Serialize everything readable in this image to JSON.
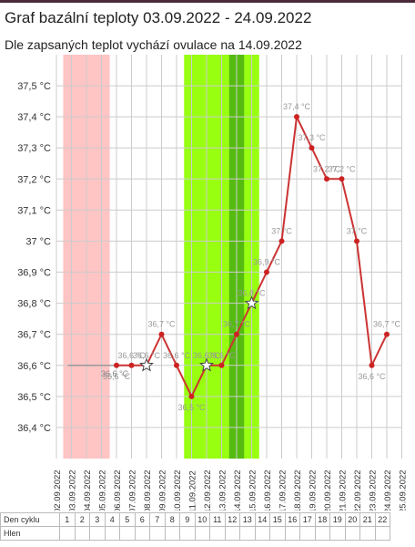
{
  "header": {
    "title": "Graf bazální teploty 03.09.2022 - 24.09.2022",
    "subtitle": "Dle zapsaných teplot vychází ovulace na 14.09.2022"
  },
  "colors": {
    "line": "#cc3333",
    "point": "#cc2222",
    "menstruation": "#ffc4c4",
    "fertile": "#99ff11",
    "ovulation": "#55bb11",
    "grid": "#cccccc"
  },
  "chart_data": {
    "type": "line",
    "y_tick_labels": [
      "36,4 °C",
      "36,5 °C",
      "36,6 °C",
      "36,7 °C",
      "36,8 °C",
      "36,9 °C",
      "37 °C",
      "37,1 °C",
      "37,2 °C",
      "37,3 °C",
      "37,4 °C",
      "37,5 °C"
    ],
    "y_ticks": [
      36.4,
      36.5,
      36.6,
      36.7,
      36.8,
      36.9,
      37.0,
      37.1,
      37.2,
      37.3,
      37.4,
      37.5
    ],
    "ylim": [
      36.3,
      37.6
    ],
    "x_dates": [
      "02.09.2022",
      "03.09.2022",
      "04.09.2022",
      "05.09.2022",
      "06.09.2022",
      "07.09.2022",
      "08.09.2022",
      "09.09.2022",
      "10.09.2022",
      "11.09.2022",
      "12.09.2022",
      "13.09.2022",
      "14.09.2022",
      "15.09.2022",
      "16.09.2022",
      "17.09.2022",
      "18.09.2022",
      "19.09.2022",
      "20.09.2022",
      "21.09.2022",
      "22.09.2022",
      "23.09.2022",
      "24.09.2022",
      "25.09.2022"
    ],
    "menstruation_dates": [
      "03.09.2022",
      "04.09.2022",
      "05.09.2022"
    ],
    "fertile_dates": [
      "11.09.2022",
      "12.09.2022",
      "13.09.2022",
      "14.09.2022",
      "15.09.2022"
    ],
    "ovulation_date": "14.09.2022",
    "baseline": 36.6,
    "baseline_from": "03.09.2022",
    "baseline_to": "08.09.2022",
    "baseline_label": "36,6 °C",
    "series": [
      {
        "points": [
          {
            "date": "06.09.2022",
            "value": 36.6,
            "label": "36,6 °C"
          },
          {
            "date": "07.09.2022",
            "value": 36.6,
            "label": "36,6 °C",
            "marker": "dot"
          },
          {
            "date": "08.09.2022",
            "value": 36.6,
            "label": "36,6 °C",
            "marker": "star"
          },
          {
            "date": "09.09.2022",
            "value": 36.7,
            "label": "36,7 °C"
          },
          {
            "date": "10.09.2022",
            "value": 36.6,
            "label": "36,6 °C"
          },
          {
            "date": "11.09.2022",
            "value": 36.5,
            "label": "36,5 °C"
          },
          {
            "date": "12.09.2022",
            "value": 36.6,
            "label": "36,6 °C",
            "marker": "star"
          },
          {
            "date": "13.09.2022",
            "value": 36.6,
            "label": "36,6 °C"
          },
          {
            "date": "14.09.2022",
            "value": 36.7,
            "label": "36,7 °C"
          },
          {
            "date": "15.09.2022",
            "value": 36.8,
            "label": "36,8 °C",
            "marker": "star"
          },
          {
            "date": "16.09.2022",
            "value": 36.9,
            "label": "36,9 °C"
          },
          {
            "date": "17.09.2022",
            "value": 37.0,
            "label": "37 °C"
          },
          {
            "date": "18.09.2022",
            "value": 37.4,
            "label": "37,4 °C"
          },
          {
            "date": "19.09.2022",
            "value": 37.3,
            "label": "37,3 °C"
          },
          {
            "date": "20.09.2022",
            "value": 37.2,
            "label": "37,2 °C"
          },
          {
            "date": "21.09.2022",
            "value": 37.2,
            "label": "37,2 °C"
          },
          {
            "date": "22.09.2022",
            "value": 37.0,
            "label": "37 °C"
          },
          {
            "date": "23.09.2022",
            "value": 36.6,
            "label": "36,6 °C"
          },
          {
            "date": "24.09.2022",
            "value": 36.7,
            "label": "36,7 °C"
          }
        ]
      }
    ]
  },
  "cycle_table": {
    "row1_label": "Den cyklu",
    "row2_label": "Hlen",
    "days": [
      "1",
      "2",
      "3",
      "4",
      "5",
      "6",
      "7",
      "8",
      "9",
      "10",
      "11",
      "12",
      "13",
      "14",
      "15",
      "16",
      "17",
      "18",
      "19",
      "20",
      "21",
      "22"
    ]
  }
}
